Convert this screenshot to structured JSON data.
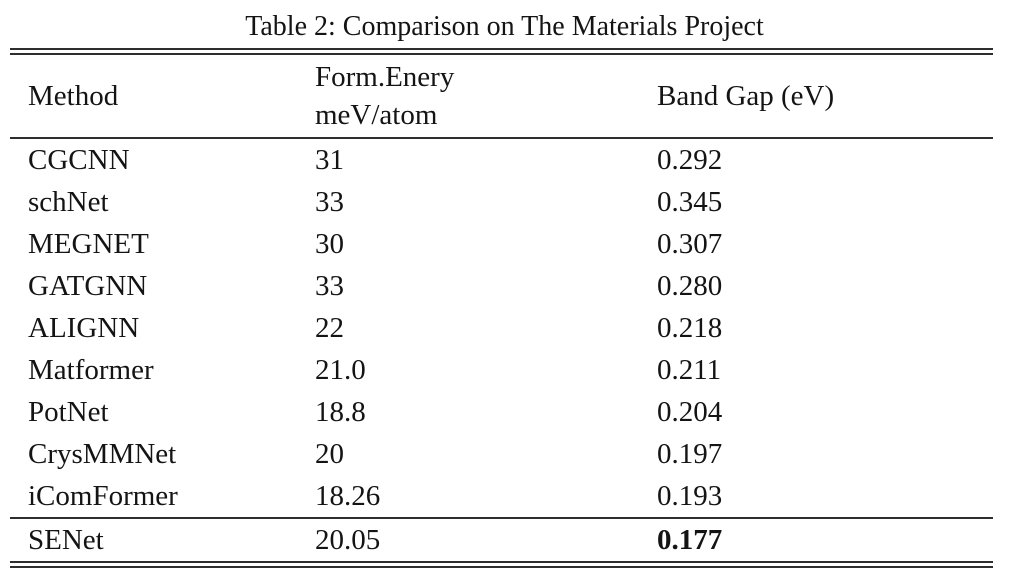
{
  "caption": "Table 2: Comparison on The Materials Project",
  "colors": {
    "background": "#ffffff",
    "text": "#141414",
    "rule": "#2e2e2e"
  },
  "table": {
    "headers": {
      "method": "Method",
      "form_energy_line1": "Form.Enery",
      "form_energy_line2": "meV/atom",
      "band_gap": "Band Gap (eV)"
    },
    "rows": [
      {
        "method": "CGCNN",
        "form_energy": "31",
        "band_gap": "0.292"
      },
      {
        "method": "schNet",
        "form_energy": "33",
        "band_gap": "0.345"
      },
      {
        "method": "MEGNET",
        "form_energy": "30",
        "band_gap": "0.307"
      },
      {
        "method": "GATGNN",
        "form_energy": "33",
        "band_gap": "0.280"
      },
      {
        "method": "ALIGNN",
        "form_energy": "22",
        "band_gap": "0.218"
      },
      {
        "method": "Matformer",
        "form_energy": "21.0",
        "band_gap": "0.211"
      },
      {
        "method": "PotNet",
        "form_energy": "18.8",
        "band_gap": "0.204"
      },
      {
        "method": "CrysMMNet",
        "form_energy": "20",
        "band_gap": "0.197"
      },
      {
        "method": "iComFormer",
        "form_energy": "18.26",
        "band_gap": "0.193"
      }
    ],
    "highlight_row": {
      "method": "SENet",
      "form_energy": "20.05",
      "band_gap": "0.177",
      "band_gap_bold": true
    }
  }
}
